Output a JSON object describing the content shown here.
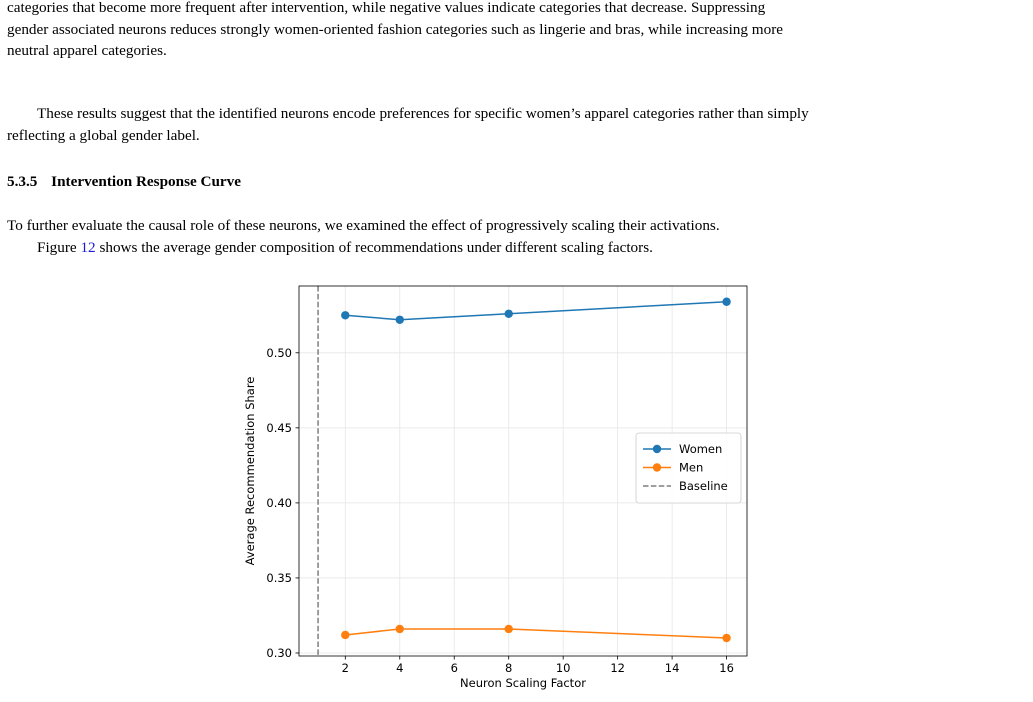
{
  "paragraph1": {
    "line1": "categories that become more frequent after intervention, while negative values indicate categories that decrease. Suppressing",
    "line2": "gender associated neurons reduces strongly women-oriented fashion categories such as lingerie and bras, while increasing more",
    "line3": "neutral apparel categories."
  },
  "paragraph2": {
    "line1": "These results suggest that the identified neurons encode preferences for specific women’s apparel categories rather than simply",
    "line2": "reflecting a global gender label."
  },
  "section": {
    "number": "5.3.5",
    "title": "Intervention Response Curve"
  },
  "paragraph3": {
    "line1": "To further evaluate the causal role of these neurons, we examined the effect of progressively scaling their activations.",
    "line2_pre": "Figure ",
    "line2_ref": "12",
    "line2_post": " shows the average gender composition of recommendations under different scaling factors."
  },
  "chart_data": {
    "type": "line",
    "xlabel": "Neuron Scaling Factor",
    "ylabel": "Average Recommendation Share",
    "x": [
      2,
      4,
      8,
      16
    ],
    "series": [
      {
        "name": "Women",
        "color": "#1f77b4",
        "values": [
          0.525,
          0.522,
          0.526,
          0.534
        ]
      },
      {
        "name": "Men",
        "color": "#ff7f0e",
        "values": [
          0.312,
          0.316,
          0.316,
          0.31
        ]
      }
    ],
    "baseline": {
      "name": "Baseline",
      "x": 1,
      "color": "#7f7f7f",
      "style": "dashed"
    },
    "xlim": [
      0.3,
      16.75
    ],
    "ylim": [
      0.298,
      0.5445
    ],
    "xticks": [
      2,
      4,
      6,
      8,
      10,
      12,
      14,
      16
    ],
    "yticks": [
      0.3,
      0.35,
      0.4,
      0.45,
      0.5
    ],
    "ytick_labels": [
      "0.30",
      "0.35",
      "0.40",
      "0.45",
      "0.50"
    ],
    "grid": true,
    "legend_position": "center-right"
  }
}
